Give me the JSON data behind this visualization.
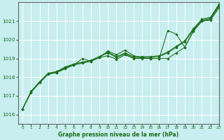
{
  "title": "Graphe pression niveau de la mer (hPa)",
  "bg_color": "#c8eef0",
  "grid_color": "#ffffff",
  "line_color": "#1a6e1a",
  "xlim": [
    -0.5,
    23
  ],
  "ylim": [
    1015.5,
    1022.0
  ],
  "yticks": [
    1016,
    1017,
    1018,
    1019,
    1020,
    1021
  ],
  "xtick_labels": [
    "0",
    "1",
    "2",
    "3",
    "4",
    "5",
    "6",
    "7",
    "8",
    "9",
    "10",
    "11",
    "12",
    "13",
    "14",
    "15",
    "16",
    "17",
    "18",
    "19",
    "20",
    "21",
    "22",
    "23"
  ],
  "series": [
    [
      1016.3,
      1017.2,
      1017.7,
      1018.15,
      1018.25,
      1018.45,
      1018.65,
      1018.75,
      1018.85,
      1019.05,
      1019.15,
      1018.95,
      1019.2,
      1019.0,
      1019.0,
      1019.0,
      1019.0,
      1019.0,
      1019.3,
      1019.6,
      1020.5,
      1021.0,
      1021.1,
      1021.8
    ],
    [
      1016.3,
      1017.2,
      1017.75,
      1018.2,
      1018.3,
      1018.5,
      1018.7,
      1018.8,
      1018.9,
      1019.1,
      1019.3,
      1019.05,
      1019.25,
      1019.05,
      1019.05,
      1019.05,
      1019.1,
      1019.3,
      1019.6,
      1019.9,
      1020.55,
      1021.05,
      1021.15,
      1021.85
    ],
    [
      1016.3,
      1017.25,
      1017.75,
      1018.2,
      1018.3,
      1018.55,
      1018.7,
      1018.8,
      1018.9,
      1019.1,
      1019.35,
      1019.1,
      1019.3,
      1019.1,
      1019.1,
      1019.1,
      1019.15,
      1019.35,
      1019.65,
      1019.95,
      1020.6,
      1021.1,
      1021.2,
      1021.9
    ],
    [
      1016.3,
      1017.2,
      1017.75,
      1018.2,
      1018.25,
      1018.5,
      1018.65,
      1019.0,
      1018.85,
      1019.05,
      1019.4,
      1019.2,
      1019.45,
      1019.15,
      1019.05,
      1019.0,
      1019.0,
      1020.5,
      1020.3,
      1019.6,
      1020.45,
      1021.0,
      1021.05,
      1021.7
    ]
  ]
}
